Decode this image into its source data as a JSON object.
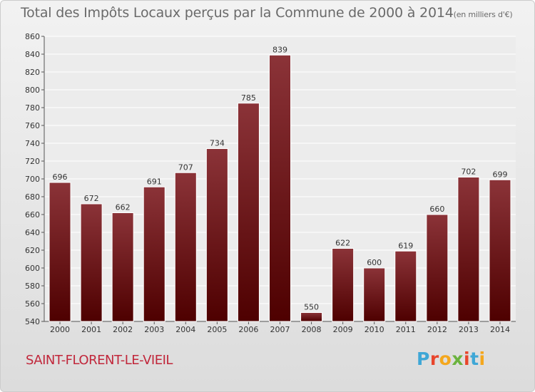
{
  "title": "Total des Impôts Locaux perçus par la Commune de 2000 à 2014",
  "unit": "(en milliers d'€)",
  "commune": "SAINT-FLORENT-LE-VIEIL",
  "logo": {
    "text": "Proxiti",
    "letter_colors": [
      "#3fa7d6",
      "#e8452c",
      "#f4a71d",
      "#6bb33e",
      "#e8452c",
      "#3fa7d6",
      "#f4a71d"
    ]
  },
  "colors": {
    "bar_top": "#8b3338",
    "bar_bottom": "#4e0000",
    "axis_text": "#333333",
    "title": "#6a6a6a",
    "commune": "#c1273b"
  },
  "chart_data": {
    "type": "bar",
    "title": "Total des Impôts Locaux perçus par la Commune de 2000 à 2014",
    "xlabel": "",
    "ylabel": "",
    "categories": [
      "2000",
      "2001",
      "2002",
      "2003",
      "2004",
      "2005",
      "2006",
      "2007",
      "2008",
      "2009",
      "2010",
      "2011",
      "2012",
      "2013",
      "2014"
    ],
    "values": [
      696,
      672,
      662,
      691,
      707,
      734,
      785,
      839,
      550,
      622,
      600,
      619,
      660,
      702,
      699
    ],
    "ylim": [
      540,
      860
    ],
    "yticks": [
      540,
      560,
      580,
      600,
      620,
      640,
      660,
      680,
      700,
      720,
      740,
      760,
      780,
      800,
      820,
      840,
      860
    ],
    "grid": true,
    "legend": "none"
  }
}
